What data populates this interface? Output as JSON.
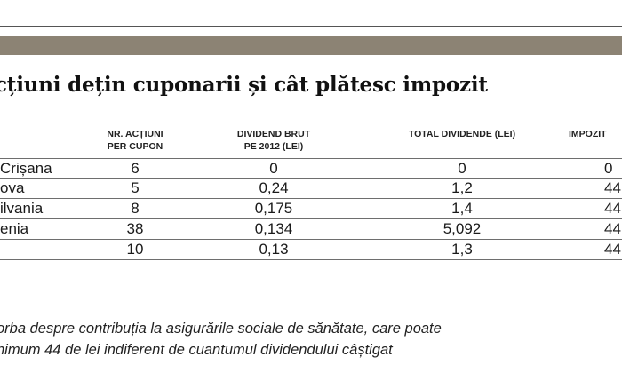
{
  "title": "cțiuni dețin cuponarii și cât plătesc impozit",
  "headers": {
    "nr_actiuni": [
      "NR. ACȚIUNI",
      "PER CUPON"
    ],
    "dividend_brut": [
      "DIVIDEND BRUT",
      "PE 2012 (LEI)"
    ],
    "total_dividende": "TOTAL DIVIDENDE (LEI)",
    "impozit": "IMPOZIT"
  },
  "rows": [
    {
      "name": "Crișana",
      "nr_actiuni": "6",
      "dividend_brut": "0",
      "total_dividende": "0",
      "impozit": "0"
    },
    {
      "name": "ova",
      "nr_actiuni": "5",
      "dividend_brut": "0,24",
      "total_dividende": "1,2",
      "impozit": "44"
    },
    {
      "name": "ilvania",
      "nr_actiuni": "8",
      "dividend_brut": "0,175",
      "total_dividende": "1,4",
      "impozit": "44"
    },
    {
      "name": "enia",
      "nr_actiuni": "38",
      "dividend_brut": "0,134",
      "total_dividende": "5,092",
      "impozit": "44"
    },
    {
      "name": "",
      "nr_actiuni": "10",
      "dividend_brut": "0,13",
      "total_dividende": "1,3",
      "impozit": "44"
    }
  ],
  "note": [
    "orba despre contribuția la asigurările sociale de sănătate, care poate",
    "nimum 44 de lei indiferent de cuantumul dividendului câștigat"
  ],
  "colors": {
    "band": "#8c8374",
    "rule": "#6e6e6e"
  }
}
